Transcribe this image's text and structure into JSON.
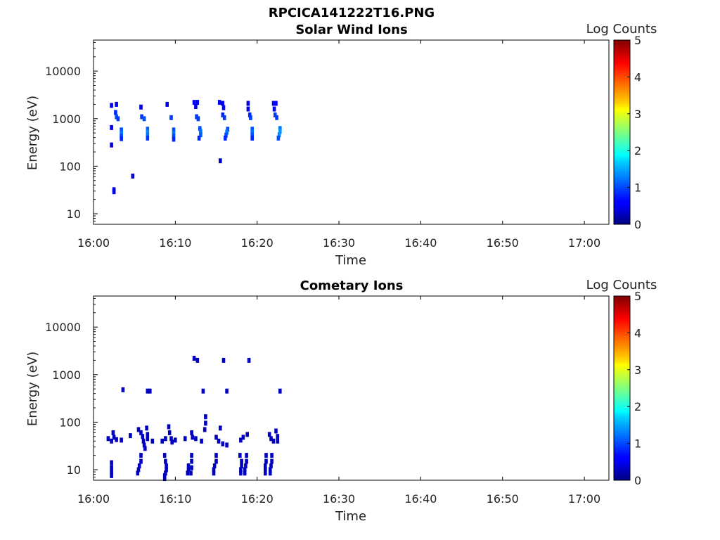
{
  "figure_title": "RPCICA141222T16.PNG",
  "chart_data": [
    {
      "type": "heatmap",
      "title": "Solar Wind Ions",
      "xlabel": "Time",
      "ylabel": "Energy (eV)",
      "x_ticks": [
        "16:00",
        "16:10",
        "16:20",
        "16:30",
        "16:40",
        "16:50",
        "17:00"
      ],
      "xlim_minutes": [
        0,
        63
      ],
      "y_scale": "log",
      "y_ticks": [
        "10",
        "100",
        "1000",
        "10000"
      ],
      "ylim": [
        6,
        45000
      ],
      "colorbar": {
        "label": "Log Counts",
        "ticks": [
          "0",
          "1",
          "2",
          "3",
          "4",
          "5"
        ],
        "range": [
          0,
          5
        ],
        "colormap": "jet"
      },
      "cells": [
        {
          "t": 2.2,
          "e": 1900,
          "v": 0.5
        },
        {
          "t": 2.8,
          "e": 2000,
          "v": 0.5
        },
        {
          "t": 2.7,
          "e": 1350,
          "v": 0.8
        },
        {
          "t": 2.8,
          "e": 1100,
          "v": 1.0
        },
        {
          "t": 3.0,
          "e": 1000,
          "v": 0.9
        },
        {
          "t": 2.2,
          "e": 650,
          "v": 0.5
        },
        {
          "t": 3.4,
          "e": 580,
          "v": 1.0
        },
        {
          "t": 3.4,
          "e": 500,
          "v": 1.2
        },
        {
          "t": 3.4,
          "e": 430,
          "v": 1.0
        },
        {
          "t": 3.4,
          "e": 380,
          "v": 0.8
        },
        {
          "t": 2.2,
          "e": 280,
          "v": 0.4
        },
        {
          "t": 4.8,
          "e": 62,
          "v": 0.4
        },
        {
          "t": 2.5,
          "e": 32,
          "v": 0.5
        },
        {
          "t": 2.5,
          "e": 29,
          "v": 0.5
        },
        {
          "t": 5.8,
          "e": 1750,
          "v": 0.5
        },
        {
          "t": 5.9,
          "e": 1100,
          "v": 0.9
        },
        {
          "t": 6.2,
          "e": 1000,
          "v": 1.0
        },
        {
          "t": 6.6,
          "e": 600,
          "v": 1.1
        },
        {
          "t": 6.6,
          "e": 520,
          "v": 1.3
        },
        {
          "t": 6.6,
          "e": 450,
          "v": 1.2
        },
        {
          "t": 6.6,
          "e": 390,
          "v": 0.9
        },
        {
          "t": 9.0,
          "e": 2000,
          "v": 0.5
        },
        {
          "t": 9.5,
          "e": 1050,
          "v": 0.9
        },
        {
          "t": 9.8,
          "e": 580,
          "v": 1.0
        },
        {
          "t": 9.8,
          "e": 500,
          "v": 1.2
        },
        {
          "t": 9.8,
          "e": 430,
          "v": 1.0
        },
        {
          "t": 9.8,
          "e": 370,
          "v": 0.8
        },
        {
          "t": 12.3,
          "e": 2200,
          "v": 0.6
        },
        {
          "t": 12.7,
          "e": 2200,
          "v": 0.6
        },
        {
          "t": 12.5,
          "e": 1800,
          "v": 0.5
        },
        {
          "t": 12.6,
          "e": 1100,
          "v": 0.9
        },
        {
          "t": 12.8,
          "e": 1000,
          "v": 0.9
        },
        {
          "t": 13.0,
          "e": 620,
          "v": 1.0
        },
        {
          "t": 13.1,
          "e": 540,
          "v": 1.2
        },
        {
          "t": 13.1,
          "e": 460,
          "v": 1.1
        },
        {
          "t": 12.9,
          "e": 390,
          "v": 0.8
        },
        {
          "t": 15.4,
          "e": 2200,
          "v": 0.6
        },
        {
          "t": 15.8,
          "e": 2100,
          "v": 0.6
        },
        {
          "t": 15.9,
          "e": 1700,
          "v": 0.5
        },
        {
          "t": 15.8,
          "e": 1200,
          "v": 0.8
        },
        {
          "t": 16.0,
          "e": 1050,
          "v": 0.9
        },
        {
          "t": 16.4,
          "e": 600,
          "v": 1.0
        },
        {
          "t": 16.3,
          "e": 520,
          "v": 1.2
        },
        {
          "t": 16.2,
          "e": 450,
          "v": 1.0
        },
        {
          "t": 16.1,
          "e": 390,
          "v": 0.8
        },
        {
          "t": 15.5,
          "e": 130,
          "v": 0.4
        },
        {
          "t": 18.9,
          "e": 2100,
          "v": 0.5
        },
        {
          "t": 18.9,
          "e": 1600,
          "v": 0.5
        },
        {
          "t": 19.1,
          "e": 1200,
          "v": 0.8
        },
        {
          "t": 19.2,
          "e": 1050,
          "v": 0.9
        },
        {
          "t": 19.4,
          "e": 600,
          "v": 1.0
        },
        {
          "t": 19.4,
          "e": 520,
          "v": 1.2
        },
        {
          "t": 19.4,
          "e": 450,
          "v": 1.0
        },
        {
          "t": 19.4,
          "e": 390,
          "v": 0.8
        },
        {
          "t": 22.0,
          "e": 2100,
          "v": 0.6
        },
        {
          "t": 22.3,
          "e": 2100,
          "v": 0.6
        },
        {
          "t": 22.1,
          "e": 1600,
          "v": 0.5
        },
        {
          "t": 22.2,
          "e": 1200,
          "v": 0.9
        },
        {
          "t": 22.4,
          "e": 1050,
          "v": 0.9
        },
        {
          "t": 22.8,
          "e": 620,
          "v": 1.2
        },
        {
          "t": 22.8,
          "e": 540,
          "v": 1.4
        },
        {
          "t": 22.7,
          "e": 460,
          "v": 1.3
        },
        {
          "t": 22.6,
          "e": 390,
          "v": 1.0
        }
      ]
    },
    {
      "type": "heatmap",
      "title": "Cometary Ions",
      "xlabel": "Time",
      "ylabel": "Energy (eV)",
      "x_ticks": [
        "16:00",
        "16:10",
        "16:20",
        "16:30",
        "16:40",
        "16:50",
        "17:00"
      ],
      "xlim_minutes": [
        0,
        63
      ],
      "y_scale": "log",
      "y_ticks": [
        "10",
        "100",
        "1000",
        "10000"
      ],
      "ylim": [
        6,
        45000
      ],
      "colorbar": {
        "label": "Log Counts",
        "ticks": [
          "0",
          "1",
          "2",
          "3",
          "4",
          "5"
        ],
        "range": [
          0,
          5
        ],
        "colormap": "jet"
      },
      "cells": [
        {
          "t": 12.3,
          "e": 2200,
          "v": 0.3
        },
        {
          "t": 12.7,
          "e": 2000,
          "v": 0.3
        },
        {
          "t": 15.9,
          "e": 2000,
          "v": 0.3
        },
        {
          "t": 19.0,
          "e": 2000,
          "v": 0.3
        },
        {
          "t": 3.6,
          "e": 480,
          "v": 0.3
        },
        {
          "t": 6.6,
          "e": 450,
          "v": 0.3
        },
        {
          "t": 6.9,
          "e": 450,
          "v": 0.3
        },
        {
          "t": 13.4,
          "e": 450,
          "v": 0.3
        },
        {
          "t": 16.3,
          "e": 450,
          "v": 0.3
        },
        {
          "t": 22.8,
          "e": 450,
          "v": 0.3
        },
        {
          "t": 13.7,
          "e": 130,
          "v": 0.3
        },
        {
          "t": 13.7,
          "e": 95,
          "v": 0.3
        },
        {
          "t": 13.6,
          "e": 70,
          "v": 0.3
        },
        {
          "t": 1.8,
          "e": 45,
          "v": 0.3
        },
        {
          "t": 2.2,
          "e": 40,
          "v": 0.3
        },
        {
          "t": 2.4,
          "e": 60,
          "v": 0.3
        },
        {
          "t": 2.5,
          "e": 48,
          "v": 0.3
        },
        {
          "t": 2.8,
          "e": 43,
          "v": 0.3
        },
        {
          "t": 3.4,
          "e": 42,
          "v": 0.3
        },
        {
          "t": 4.5,
          "e": 52,
          "v": 0.3
        },
        {
          "t": 5.5,
          "e": 70,
          "v": 0.3
        },
        {
          "t": 5.8,
          "e": 60,
          "v": 0.3
        },
        {
          "t": 6.0,
          "e": 50,
          "v": 0.3
        },
        {
          "t": 6.1,
          "e": 40,
          "v": 0.3
        },
        {
          "t": 6.2,
          "e": 33,
          "v": 0.3
        },
        {
          "t": 6.3,
          "e": 28,
          "v": 0.3
        },
        {
          "t": 6.5,
          "e": 75,
          "v": 0.3
        },
        {
          "t": 6.6,
          "e": 55,
          "v": 0.3
        },
        {
          "t": 6.6,
          "e": 45,
          "v": 0.3
        },
        {
          "t": 7.2,
          "e": 40,
          "v": 0.3
        },
        {
          "t": 8.4,
          "e": 40,
          "v": 0.3
        },
        {
          "t": 8.8,
          "e": 45,
          "v": 0.3
        },
        {
          "t": 9.2,
          "e": 80,
          "v": 0.3
        },
        {
          "t": 9.3,
          "e": 60,
          "v": 0.3
        },
        {
          "t": 9.5,
          "e": 45,
          "v": 0.3
        },
        {
          "t": 9.6,
          "e": 38,
          "v": 0.3
        },
        {
          "t": 10.0,
          "e": 42,
          "v": 0.3
        },
        {
          "t": 11.2,
          "e": 45,
          "v": 0.3
        },
        {
          "t": 12.0,
          "e": 60,
          "v": 0.3
        },
        {
          "t": 12.1,
          "e": 48,
          "v": 0.3
        },
        {
          "t": 12.5,
          "e": 45,
          "v": 0.3
        },
        {
          "t": 13.2,
          "e": 40,
          "v": 0.3
        },
        {
          "t": 15.0,
          "e": 48,
          "v": 0.3
        },
        {
          "t": 15.3,
          "e": 40,
          "v": 0.3
        },
        {
          "t": 15.5,
          "e": 75,
          "v": 0.3
        },
        {
          "t": 15.8,
          "e": 35,
          "v": 0.3
        },
        {
          "t": 16.3,
          "e": 33,
          "v": 0.3
        },
        {
          "t": 18.0,
          "e": 42,
          "v": 0.3
        },
        {
          "t": 18.3,
          "e": 48,
          "v": 0.3
        },
        {
          "t": 18.8,
          "e": 55,
          "v": 0.3
        },
        {
          "t": 21.5,
          "e": 55,
          "v": 0.3
        },
        {
          "t": 21.7,
          "e": 45,
          "v": 0.3
        },
        {
          "t": 22.0,
          "e": 40,
          "v": 0.3
        },
        {
          "t": 22.3,
          "e": 65,
          "v": 0.3
        },
        {
          "t": 22.5,
          "e": 50,
          "v": 0.3
        },
        {
          "t": 22.5,
          "e": 40,
          "v": 0.3
        },
        {
          "t": 2.2,
          "e": 14,
          "v": 0.3
        },
        {
          "t": 2.2,
          "e": 11,
          "v": 0.3
        },
        {
          "t": 2.2,
          "e": 9,
          "v": 0.3
        },
        {
          "t": 2.2,
          "e": 7.5,
          "v": 0.3
        },
        {
          "t": 5.8,
          "e": 20,
          "v": 0.3
        },
        {
          "t": 5.8,
          "e": 15,
          "v": 0.3
        },
        {
          "t": 5.6,
          "e": 12,
          "v": 0.3
        },
        {
          "t": 5.5,
          "e": 10,
          "v": 0.3
        },
        {
          "t": 5.4,
          "e": 8.5,
          "v": 0.3
        },
        {
          "t": 8.7,
          "e": 20,
          "v": 0.3
        },
        {
          "t": 8.8,
          "e": 15,
          "v": 0.3
        },
        {
          "t": 8.9,
          "e": 12,
          "v": 0.3
        },
        {
          "t": 8.9,
          "e": 10,
          "v": 0.3
        },
        {
          "t": 8.8,
          "e": 8.5,
          "v": 0.3
        },
        {
          "t": 8.7,
          "e": 7.5,
          "v": 0.3
        },
        {
          "t": 8.7,
          "e": 6.5,
          "v": 0.3
        },
        {
          "t": 11.6,
          "e": 12,
          "v": 0.3
        },
        {
          "t": 11.6,
          "e": 10,
          "v": 0.3
        },
        {
          "t": 11.5,
          "e": 8.5,
          "v": 0.3
        },
        {
          "t": 12.0,
          "e": 20,
          "v": 0.3
        },
        {
          "t": 12.0,
          "e": 15,
          "v": 0.3
        },
        {
          "t": 12.0,
          "e": 11,
          "v": 0.3
        },
        {
          "t": 11.9,
          "e": 8.5,
          "v": 0.3
        },
        {
          "t": 15.0,
          "e": 20,
          "v": 0.3
        },
        {
          "t": 15.0,
          "e": 15,
          "v": 0.3
        },
        {
          "t": 14.8,
          "e": 12,
          "v": 0.3
        },
        {
          "t": 14.7,
          "e": 10,
          "v": 0.3
        },
        {
          "t": 14.7,
          "e": 8.5,
          "v": 0.3
        },
        {
          "t": 17.9,
          "e": 20,
          "v": 0.3
        },
        {
          "t": 18.1,
          "e": 15,
          "v": 0.3
        },
        {
          "t": 18.1,
          "e": 12,
          "v": 0.3
        },
        {
          "t": 18.0,
          "e": 10,
          "v": 0.3
        },
        {
          "t": 18.0,
          "e": 8.5,
          "v": 0.3
        },
        {
          "t": 18.7,
          "e": 20,
          "v": 0.3
        },
        {
          "t": 18.7,
          "e": 15,
          "v": 0.3
        },
        {
          "t": 18.6,
          "e": 12,
          "v": 0.3
        },
        {
          "t": 18.5,
          "e": 10,
          "v": 0.3
        },
        {
          "t": 18.5,
          "e": 8.5,
          "v": 0.3
        },
        {
          "t": 21.1,
          "e": 20,
          "v": 0.3
        },
        {
          "t": 21.1,
          "e": 15,
          "v": 0.3
        },
        {
          "t": 21.0,
          "e": 12,
          "v": 0.3
        },
        {
          "t": 21.0,
          "e": 10,
          "v": 0.3
        },
        {
          "t": 21.0,
          "e": 8.5,
          "v": 0.3
        },
        {
          "t": 21.8,
          "e": 20,
          "v": 0.3
        },
        {
          "t": 21.8,
          "e": 15,
          "v": 0.3
        },
        {
          "t": 21.7,
          "e": 12,
          "v": 0.3
        },
        {
          "t": 21.6,
          "e": 10,
          "v": 0.3
        },
        {
          "t": 21.6,
          "e": 8.5,
          "v": 0.3
        }
      ]
    }
  ]
}
